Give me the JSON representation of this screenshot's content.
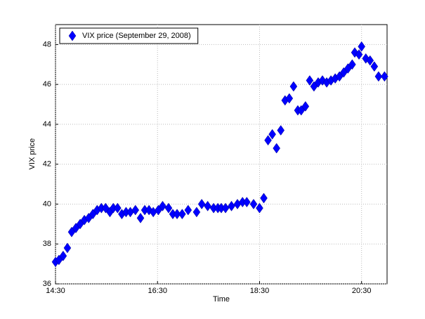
{
  "chart_data": {
    "type": "scatter",
    "x_label": "Time",
    "y_label": "VIX price",
    "xlim": [
      870,
      1260
    ],
    "ylim": [
      36,
      49
    ],
    "xticks": [
      {
        "value": 870,
        "label": "14:30"
      },
      {
        "value": 990,
        "label": "16:30"
      },
      {
        "value": 1110,
        "label": "18:30"
      },
      {
        "value": 1230,
        "label": "20:30"
      }
    ],
    "yticks": [
      36,
      38,
      40,
      42,
      44,
      46,
      48
    ],
    "grid": true,
    "legend": "upper left",
    "series": [
      {
        "name": "VIX price (September 29, 2008)",
        "color": "#0000ff",
        "x": [
          870,
          874,
          879,
          884,
          889,
          894,
          899,
          904,
          909,
          914,
          919,
          924,
          929,
          934,
          938,
          943,
          948,
          953,
          958,
          964,
          970,
          975,
          980,
          985,
          991,
          996,
          1003,
          1008,
          1013,
          1019,
          1026,
          1036,
          1042,
          1049,
          1056,
          1061,
          1065,
          1070,
          1077,
          1084,
          1090,
          1095,
          1103,
          1110,
          1115,
          1120,
          1125,
          1130,
          1135,
          1140,
          1145,
          1150,
          1155,
          1159,
          1164,
          1169,
          1174,
          1179,
          1184,
          1189,
          1194,
          1199,
          1204,
          1209,
          1214,
          1219,
          1222,
          1227,
          1230,
          1235,
          1240,
          1245,
          1250,
          1257
        ],
        "values": [
          37.1,
          37.2,
          37.4,
          37.8,
          38.6,
          38.8,
          39.0,
          39.2,
          39.3,
          39.5,
          39.7,
          39.8,
          39.8,
          39.6,
          39.8,
          39.8,
          39.5,
          39.6,
          39.6,
          39.7,
          39.3,
          39.7,
          39.7,
          39.6,
          39.7,
          39.9,
          39.8,
          39.5,
          39.5,
          39.5,
          39.7,
          39.6,
          40.0,
          39.9,
          39.8,
          39.8,
          39.8,
          39.8,
          39.9,
          40.0,
          40.1,
          40.1,
          40.0,
          39.8,
          40.3,
          43.2,
          43.5,
          42.8,
          43.7,
          45.2,
          45.3,
          45.9,
          44.7,
          44.7,
          44.9,
          46.2,
          45.9,
          46.1,
          46.2,
          46.1,
          46.2,
          46.3,
          46.4,
          46.6,
          46.8,
          47.0,
          47.6,
          47.5,
          47.9,
          47.3,
          47.2,
          46.9,
          46.4,
          46.4
        ]
      }
    ]
  }
}
